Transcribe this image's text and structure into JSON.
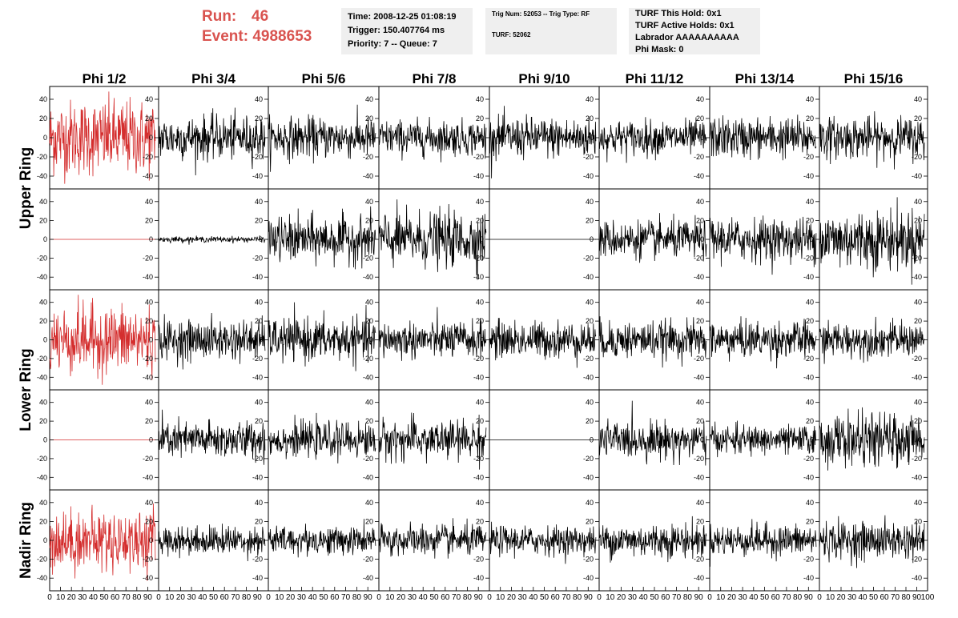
{
  "header": {
    "run_label": "Run:",
    "run_value": "46",
    "event_label": "Event:",
    "event_value": "4988653",
    "accent_color": "#d9534f"
  },
  "info": {
    "time": "Time: 2008-12-25 01:08:19",
    "trigger": "Trigger: 150.407764 ms",
    "priority": "Priority: 7 -- Queue: 7",
    "trig_num": "Trig Num: 52053 -- Trig Type: RF",
    "turf": "TURF: 52062",
    "turf_this_hold": "TURF This Hold: 0x1",
    "turf_active_holds": "TURF Active Holds: 0x1",
    "labrador": "Labrador AAAAAAAAAA",
    "phi_mask": "Phi Mask: 0"
  },
  "chart_data": {
    "type": "line",
    "columns": [
      "Phi 1/2",
      "Phi 3/4",
      "Phi 5/6",
      "Phi 7/8",
      "Phi 9/10",
      "Phi 11/12",
      "Phi 13/14",
      "Phi 15/16"
    ],
    "ring_labels": [
      "Upper Ring",
      "Lower Ring",
      "Nadir Ring"
    ],
    "ring_rows": [
      [
        0,
        1
      ],
      [
        2,
        3
      ],
      [
        4
      ]
    ],
    "xlim": [
      0,
      100
    ],
    "ylim": [
      -50,
      50
    ],
    "xticks": [
      0,
      10,
      20,
      30,
      40,
      50,
      60,
      70,
      80,
      90,
      100
    ],
    "yticks": [
      -40,
      -20,
      0,
      20,
      40
    ],
    "samples_per_trace": 260,
    "trace_color": "#000000",
    "highlight_color": "#d42e2e",
    "highlight_column": 0,
    "panels": [
      {
        "row": 0,
        "amplitude": [
          26,
          15,
          14,
          12,
          14,
          12,
          14,
          14
        ]
      },
      {
        "row": 1,
        "amplitude": [
          0,
          2,
          16,
          19,
          0,
          13,
          15,
          21
        ]
      },
      {
        "row": 2,
        "amplitude": [
          24,
          14,
          15,
          13,
          13,
          13,
          13,
          12
        ]
      },
      {
        "row": 3,
        "amplitude": [
          0,
          13,
          12,
          14,
          0,
          13,
          10,
          18
        ]
      },
      {
        "row": 4,
        "amplitude": [
          21,
          10,
          10,
          11,
          10,
          12,
          11,
          13
        ]
      }
    ]
  }
}
